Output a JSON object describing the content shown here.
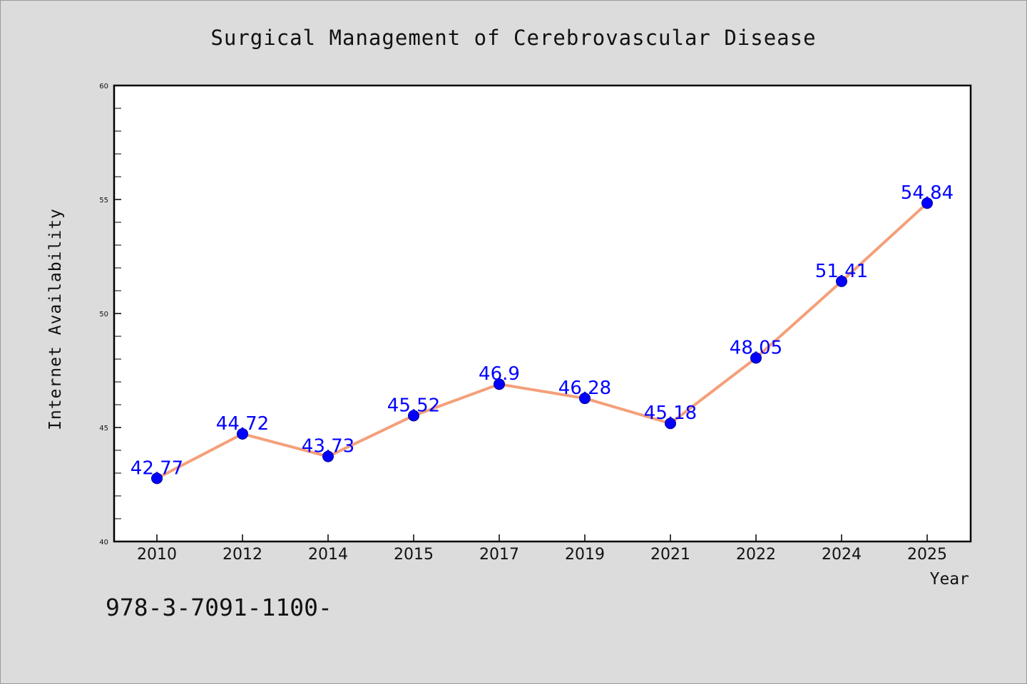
{
  "chart_data": {
    "type": "line",
    "title": "Surgical Management of Cerebrovascular Disease",
    "xlabel": "Year",
    "ylabel": "Internet Availability",
    "categories": [
      "2010",
      "2012",
      "2014",
      "2015",
      "2017",
      "2019",
      "2021",
      "2022",
      "2024",
      "2025"
    ],
    "values": [
      42.77,
      44.72,
      43.73,
      45.52,
      46.9,
      46.28,
      45.18,
      48.05,
      51.41,
      54.84
    ],
    "data_labels": [
      "42.77",
      "44.72",
      "43.73",
      "45.52",
      "46.9",
      "46.28",
      "45.18",
      "48.05",
      "51.41",
      "54.84"
    ],
    "ylim": [
      40,
      60
    ],
    "yticks": [
      "40",
      "45",
      "50",
      "55",
      "60"
    ],
    "grid": false,
    "legend": "none",
    "colors": {
      "line": "#f4a07a",
      "marker": "#0000ff",
      "data_label": "#0000ff",
      "background": "#dcdcdc",
      "plot_area": "#ffffff"
    }
  },
  "footer_text": "978-3-7091-1100-"
}
